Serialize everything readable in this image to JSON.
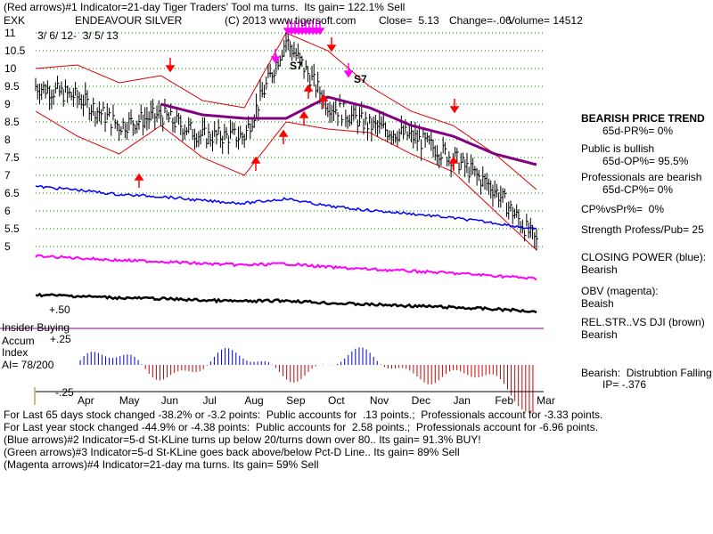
{
  "header": {
    "line1": "(Red arrows)#1 Indicator=21-day Tiger Traders' Tool ma turns.  Its gain= 122.1% Sell",
    "symbol": "EXK",
    "name": "ENDEAVOUR SILVER",
    "copyright": "(C) 2013 www.tigersoft.com",
    "close": "Close=  5.13",
    "change": "Change=-.06",
    "volume": "Volume= 14512",
    "date_range": "3/ 6/ 12-  3/ 5/ 13"
  },
  "y_ticks": [
    "11",
    "10.5",
    "10",
    "9.5",
    "9",
    "8.5",
    "8",
    "7.5",
    "7",
    "6.5",
    "6",
    "5.5",
    "5"
  ],
  "x_ticks": [
    "Apr",
    "May",
    "Jun",
    "Jul",
    "Aug",
    "Sep",
    "Oct",
    "Nov",
    "Dec",
    "Jan",
    "Feb",
    "Mar"
  ],
  "left_labels": {
    "plus50": "+.50",
    "insider": "Insider Buying",
    "accum1": "Accum",
    "plus25": "+.25",
    "index": "Index",
    "ai": "AI= 78/200",
    "minus25": "-.25"
  },
  "annotations": {
    "s7_a": "S7",
    "s7_b": "S7"
  },
  "right_panel": {
    "trend_title": "BEARISH PRICE TREND",
    "pr": "65d-PR%= 0%",
    "public": "Public is bullish",
    "op": "65d-OP%= 95.5%",
    "prof": "Professionals are bearish",
    "cp": "65d-CP%= 0%",
    "cpvspr": "CP%vsPr%=  0%",
    "strength": "Strength Profess/Pub= 25",
    "closing_power": "CLOSING POWER (blue):",
    "cp_val": "Bearish",
    "obv": "OBV (magenta):",
    "obv_val": "Beaish",
    "relstr": "REL.STR..VS DJI (brown)",
    "relstr_val": "Bearish",
    "distribution": "Bearish:  Distrubtion Falling",
    "ip": "IP= -.376"
  },
  "footer": {
    "line1": "For Last 65 days stock changed -38.2% or -3.2 points:  Public accounts for  .13 points.;  Professionals account for -3.33 points.",
    "line2": "For Last year stock changed -44.9% or -4.38 points:  Public accounts for  2.58 points.;  Professionals account for -6.96 points.",
    "line3": "(Blue arrows)#2 Indicator=5-d St-KLine turns up below 20/turns down over 80.. Its gain= 91.3% BUY!",
    "line4": "(Green arrows)#3 Indicator=5-d St-KLine goes back above/below Pct-D Line.. Its gain= 89% Sell",
    "line5": "(Magenta arrows)#4 Indicator=21-day ma turns. Its gain= 59% Sell"
  },
  "colors": {
    "price": "#000000",
    "band": "#dd0000",
    "ma": "#800080",
    "closing_power": "#0000ff",
    "obv": "#ff00ff",
    "relstr": "#000000",
    "grid": "#008000",
    "accum_pos": "#0000cc",
    "accum_neg": "#cc0000",
    "arrow_red": "#ff0000",
    "arrow_magenta": "#ff00ff"
  },
  "chart_data": {
    "type": "line",
    "title": "ENDEAVOUR SILVER (EXK) 3/6/12 - 3/5/13",
    "ylim": [
      5,
      11
    ],
    "x": [
      "Mar",
      "Apr",
      "May",
      "Jun",
      "Jul",
      "Aug",
      "Sep",
      "Oct",
      "Nov",
      "Dec",
      "Jan",
      "Feb",
      "Mar"
    ],
    "series": [
      {
        "name": "Close",
        "values": [
          9.5,
          9.2,
          8.4,
          8.7,
          8.1,
          8.1,
          10.8,
          9.0,
          8.4,
          8.1,
          7.5,
          6.6,
          5.13
        ]
      },
      {
        "name": "21-day MA",
        "values": [
          null,
          null,
          null,
          9.0,
          8.7,
          8.6,
          8.6,
          9.2,
          8.9,
          8.4,
          8.1,
          7.6,
          7.3
        ]
      },
      {
        "name": "Upper Band",
        "values": [
          10.0,
          10.1,
          9.6,
          9.8,
          9.1,
          8.9,
          11.0,
          10.5,
          9.5,
          8.8,
          8.4,
          7.6,
          6.6
        ]
      },
      {
        "name": "Lower Band",
        "values": [
          8.8,
          8.1,
          7.6,
          8.4,
          7.5,
          7.0,
          8.5,
          8.3,
          8.2,
          7.6,
          7.1,
          6.0,
          4.9
        ]
      }
    ]
  }
}
